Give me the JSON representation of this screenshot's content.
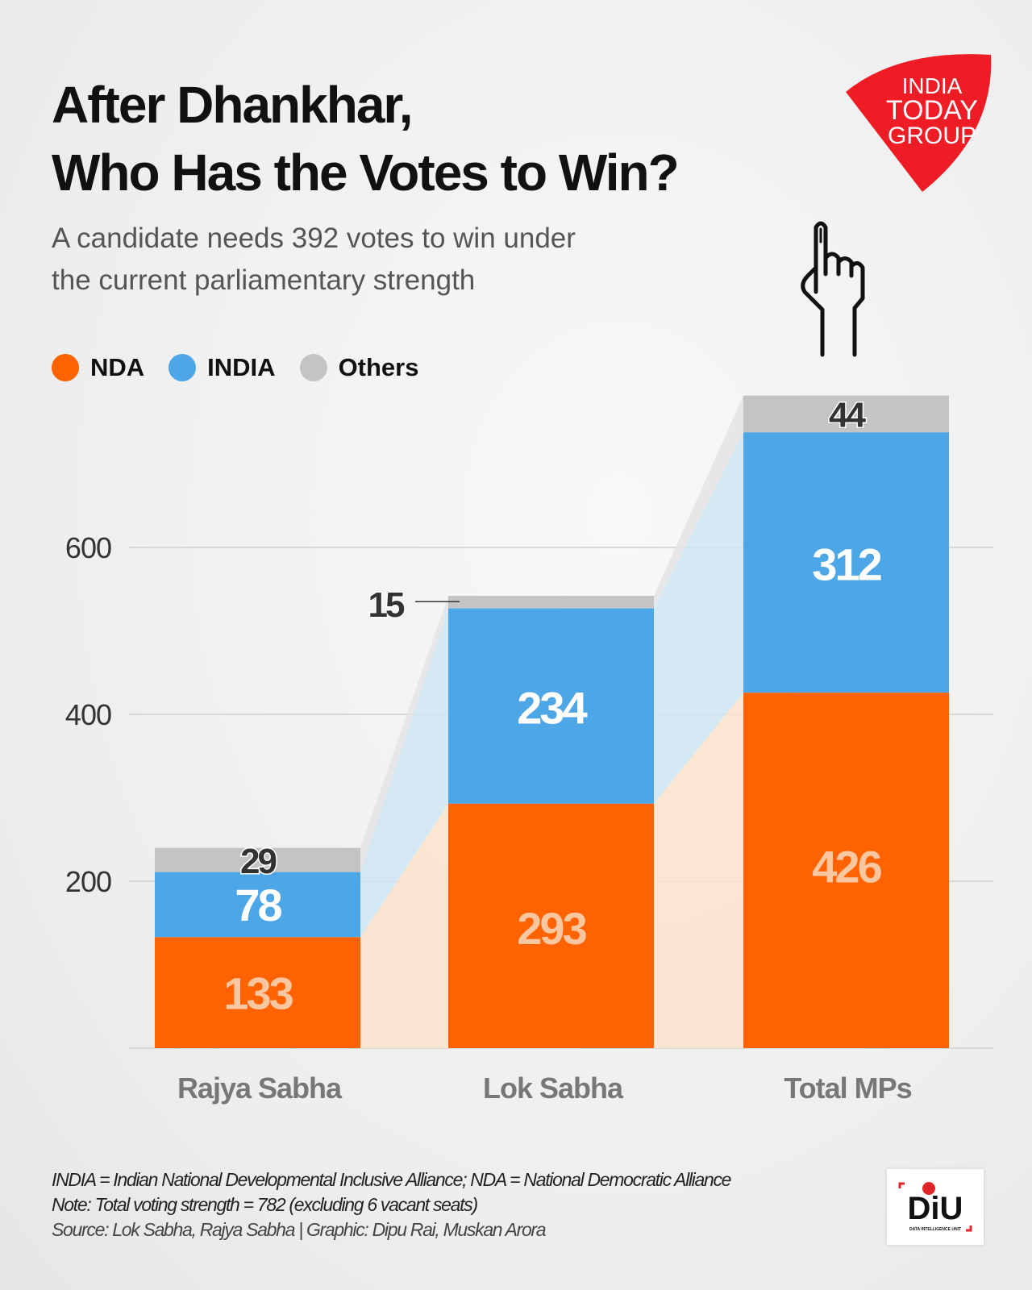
{
  "header": {
    "title_line1": "After Dhankhar,",
    "title_line2": "Who Has the Votes to Win?",
    "subtitle_line1": "A candidate needs 392 votes to win under",
    "subtitle_line2": "the current parliamentary strength"
  },
  "logo": {
    "line1": "INDIA",
    "line2": "TODAY",
    "line3": "GROUP",
    "color": "#ee1c25"
  },
  "footer": {
    "line1": "INDIA = Indian National Developmental Inclusive Alliance; NDA = National Democratic Alliance",
    "line2": "Note: Total voting strength = 782 (excluding 6 vacant seats)",
    "line3": "Source: Lok Sabha, Rajya Sabha | Graphic: Dipu Rai, Muskan Arora",
    "diu_logo": "DiU",
    "diu_sub": "DATA INTELLIGENCE UNIT"
  },
  "chart_data": {
    "type": "bar",
    "stacked": true,
    "title": "After Dhankhar, Who Has the Votes to Win?",
    "categories": [
      "Rajya Sabha",
      "Lok Sabha",
      "Total MPs"
    ],
    "series": [
      {
        "name": "NDA",
        "values": [
          133,
          293,
          426
        ],
        "color": "#ff6200"
      },
      {
        "name": "INDIA",
        "values": [
          78,
          234,
          312
        ],
        "color": "#4da6e6"
      },
      {
        "name": "Others",
        "values": [
          29,
          15,
          44
        ],
        "color": "#c4c4c6"
      }
    ],
    "yticks": [
      200,
      400,
      600
    ],
    "ylim": [
      0,
      782
    ],
    "grid": true,
    "legend_position": "top-left"
  }
}
